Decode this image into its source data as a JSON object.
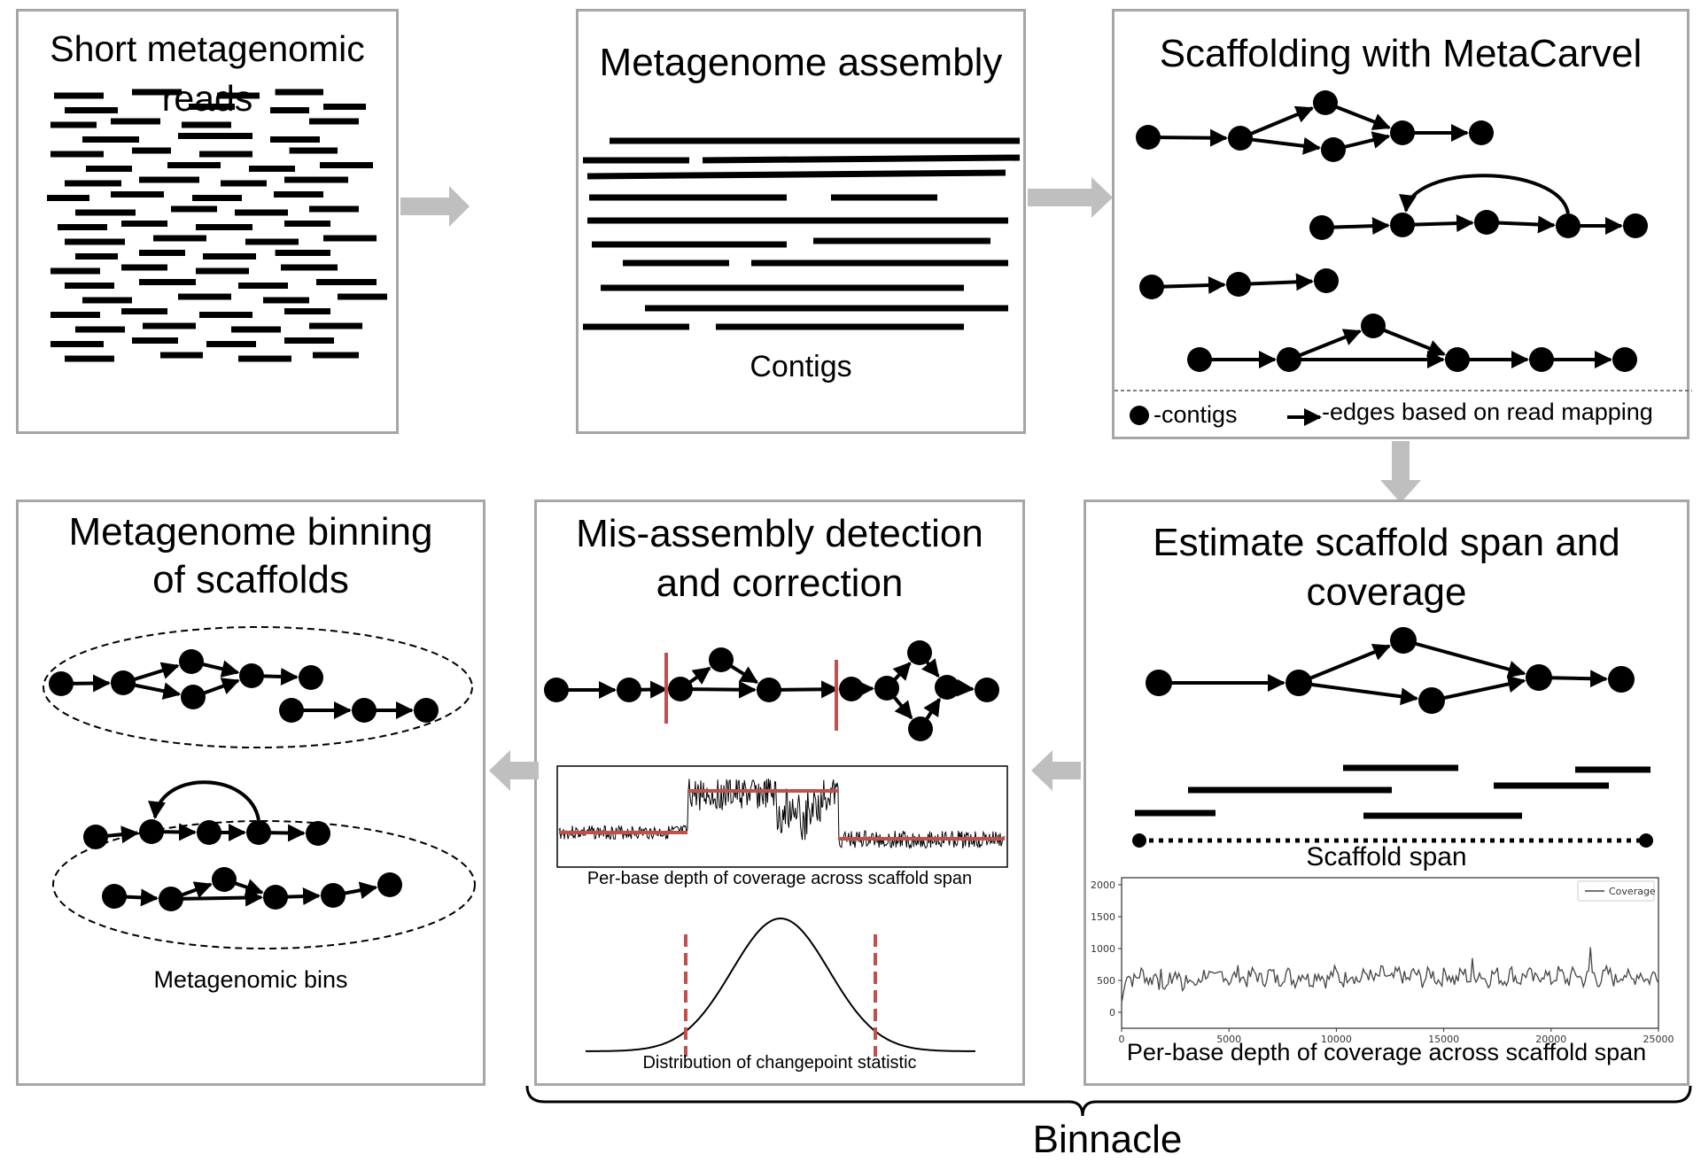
{
  "panels": {
    "reads": {
      "title": "Short metagenomic reads"
    },
    "assembly": {
      "title": "Metagenome assembly",
      "caption": "Contigs"
    },
    "scaffolding": {
      "title": "Scaffolding with MetaCarvel",
      "legend_contigs": "-contigs",
      "legend_edges": "-edges based on read mapping"
    },
    "estimate": {
      "title_line1": "Estimate scaffold span and",
      "title_line2": "coverage",
      "span_label": "Scaffold span",
      "coverage_caption": "Per-base depth of coverage across scaffold span",
      "legend_label": "Coverage",
      "y_ticks": [
        "2000",
        "1500",
        "1000",
        "500",
        "0"
      ],
      "x_ticks": [
        "0",
        "5000",
        "10000",
        "15000",
        "20000",
        "25000"
      ]
    },
    "misassembly": {
      "title_line1": "Mis-assembly detection",
      "title_line2": "and correction",
      "depth_caption": "Per-base depth of coverage across scaffold span",
      "distribution_caption": "Distribution of changepoint statistic"
    },
    "binning": {
      "title_line1": "Metagenome binning",
      "title_line2": "of scaffolds",
      "caption": "Metagenomic bins"
    }
  },
  "bracket_label": "Binnacle",
  "colors": {
    "border": "#a6a6a6",
    "arrow": "#bfbfbf",
    "changepoint": "#c0504d",
    "ink": "#000000"
  }
}
